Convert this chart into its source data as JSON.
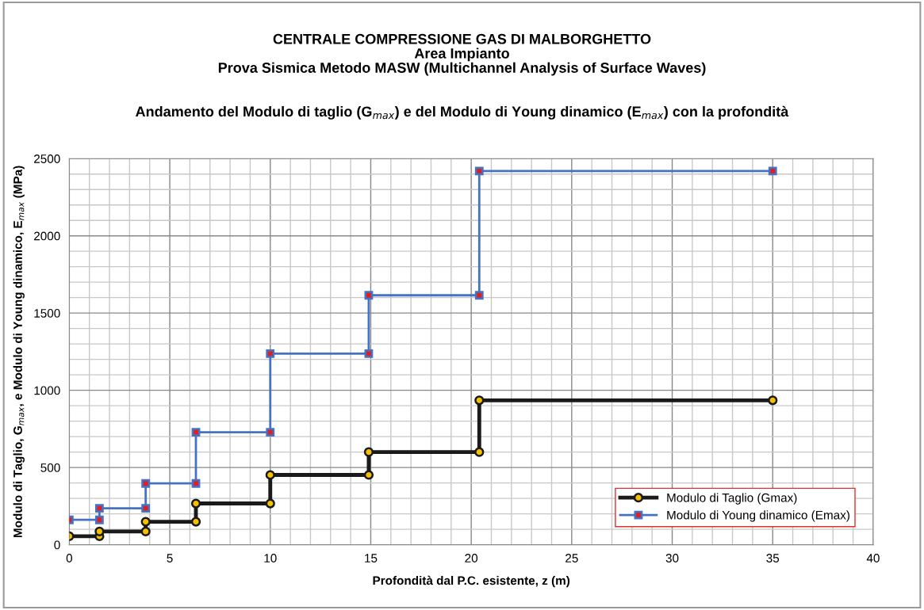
{
  "chart_data": {
    "type": "line",
    "title": "CENTRALE COMPRESSIONE GAS DI MALBORGHETTO\nArea Impianto\nProva Sismica Metodo MASW (Multichannel Analysis of Surface Waves)",
    "subtitle": "Andamento del Modulo di taglio (G$_{max}$) e del Modulo di Young dinamico (E$_{max}$) con la profondità",
    "xlabel": "Profondità dal P.C. esistente, z (m)",
    "ylabel": "Modulo di Taglio, G$_{max}$, e Modulo di Young dinamico, E$_{max}$ (MPa)",
    "series": [
      {
        "name": "Modulo di Taglio (Gmax)",
        "color": "#1a1a1a",
        "marker": "circle",
        "x": [
          0,
          1.5,
          1.5,
          3.8,
          3.8,
          6.3,
          6.3,
          10,
          10,
          14.9,
          14.9,
          20.4,
          20.4,
          35
        ],
        "values": [
          55,
          55,
          86,
          86,
          149,
          149,
          267,
          267,
          452,
          452,
          600,
          600,
          935,
          935
        ]
      },
      {
        "name": "Modulo di Young dinamico (Emax)",
        "color": "#4472c4",
        "marker": "square",
        "x": [
          0,
          1.5,
          1.5,
          3.8,
          3.8,
          6.3,
          6.3,
          10,
          10,
          14.9,
          14.9,
          20.4,
          20.4,
          35
        ],
        "values": [
          161,
          161,
          236,
          236,
          397,
          397,
          728,
          728,
          1237,
          1237,
          1615,
          1615,
          2420,
          2420
        ]
      }
    ],
    "xlim": [
      0,
      40
    ],
    "xticks": [
      0,
      5,
      10,
      15,
      20,
      25,
      30,
      35,
      40
    ],
    "ylim": [
      0,
      2500
    ],
    "yticks": [
      0,
      500,
      1000,
      1500,
      2000,
      2500
    ],
    "grid": true,
    "legend": "bottom right",
    "line_style": "solid"
  }
}
